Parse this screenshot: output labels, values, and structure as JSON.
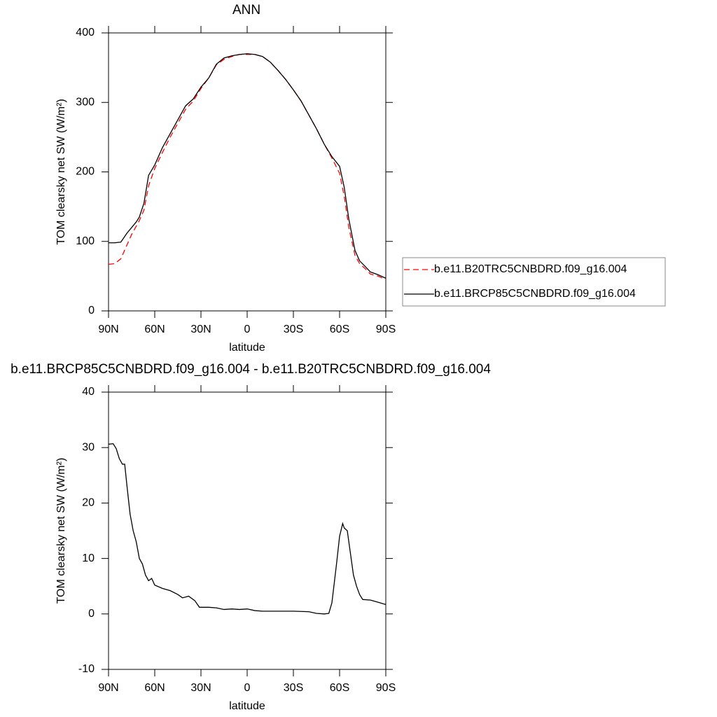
{
  "chart_data": [
    {
      "type": "line",
      "title": "ANN",
      "xlabel": "latitude",
      "ylabel": "TOM clearsky net SW (W/m²)",
      "x": [
        90,
        86,
        82,
        78,
        75,
        72,
        70,
        67,
        64,
        60,
        55,
        50,
        45,
        40,
        35,
        30,
        25,
        20,
        15,
        10,
        5,
        0,
        -5,
        -10,
        -15,
        -20,
        -25,
        -30,
        -35,
        -40,
        -45,
        -50,
        -55,
        -60,
        -63,
        -66,
        -70,
        -73,
        -77,
        -80,
        -85,
        -90
      ],
      "series": [
        {
          "name": "b.e11.B20TRC5CNBDRD.f09_g16.004",
          "color": "#ff0000",
          "linestyle": "dashed",
          "values": [
            67,
            68,
            75,
            95,
            110,
            122,
            130,
            145,
            180,
            205,
            228,
            250,
            270,
            290,
            302,
            320,
            335,
            354,
            362,
            366,
            369,
            369,
            369,
            366,
            358,
            346,
            333,
            318,
            302,
            282,
            262,
            240,
            220,
            198,
            165,
            120,
            80,
            68,
            60,
            53,
            50,
            45
          ]
        },
        {
          "name": "b.e11.BRCP85C5CNBDRD.f09_g16.004",
          "color": "#000000",
          "linestyle": "solid",
          "values": [
            98,
            98,
            99,
            112,
            120,
            128,
            135,
            155,
            195,
            210,
            235,
            255,
            275,
            295,
            305,
            322,
            335,
            355,
            364,
            367,
            369,
            370,
            369,
            366,
            358,
            346,
            333,
            318,
            302,
            282,
            262,
            240,
            222,
            208,
            178,
            132,
            87,
            72,
            63,
            56,
            52,
            47
          ]
        }
      ],
      "xlim": [
        90,
        -90
      ],
      "xticks": [
        {
          "value": 90,
          "label": "90N"
        },
        {
          "value": 60,
          "label": "60N"
        },
        {
          "value": 30,
          "label": "30N"
        },
        0,
        {
          "value": -30,
          "label": "30S"
        },
        {
          "value": -60,
          "label": "60S"
        },
        {
          "value": -90,
          "label": "90S"
        }
      ],
      "ylim": [
        0,
        400
      ],
      "yticks": [
        0,
        100,
        200,
        300,
        400
      ],
      "legend": "right"
    },
    {
      "type": "line",
      "title": "b.e11.BRCP85C5CNBDRD.f09_g16.004 - b.e11.B20TRC5CNBDRD.f09_g16.004",
      "xlabel": "latitude",
      "ylabel": "TOM clearsky net SW (W/m²)",
      "x": [
        90,
        87,
        85,
        83,
        81,
        79.5,
        78,
        76,
        74,
        72,
        70,
        68,
        66,
        64,
        62,
        60,
        55,
        50,
        45,
        42,
        38,
        34,
        31,
        25,
        20,
        15,
        10,
        5,
        0,
        -5,
        -10,
        -20,
        -30,
        -40,
        -45,
        -50,
        -53,
        -55,
        -58,
        -60,
        -62,
        -63,
        -65,
        -67,
        -69,
        -71,
        -73,
        -75,
        -80,
        -85,
        -90
      ],
      "series": [
        {
          "color": "#000000",
          "linestyle": "solid",
          "values": [
            30.6,
            30.7,
            29.8,
            28,
            27,
            27,
            23,
            18,
            15,
            13,
            10,
            9,
            7,
            6,
            6.4,
            5.2,
            4.6,
            4.2,
            3.5,
            2.9,
            3.2,
            2.4,
            1.2,
            1.2,
            1.1,
            0.8,
            0.9,
            0.8,
            0.9,
            0.6,
            0.5,
            0.5,
            0.5,
            0.4,
            0.1,
            0,
            0.1,
            2,
            9,
            14,
            16.3,
            15.5,
            15,
            11,
            7,
            5,
            3.5,
            2.6,
            2.5,
            2.1,
            1.7
          ]
        }
      ],
      "xlim": [
        90,
        -90
      ],
      "xticks": [
        {
          "value": 90,
          "label": "90N"
        },
        {
          "value": 60,
          "label": "60N"
        },
        {
          "value": 30,
          "label": "30N"
        },
        0,
        {
          "value": -30,
          "label": "30S"
        },
        {
          "value": -60,
          "label": "60S"
        },
        {
          "value": -90,
          "label": "90S"
        }
      ],
      "ylim": [
        -10,
        40
      ],
      "yticks": [
        -10,
        0,
        10,
        20,
        30,
        40
      ]
    }
  ]
}
